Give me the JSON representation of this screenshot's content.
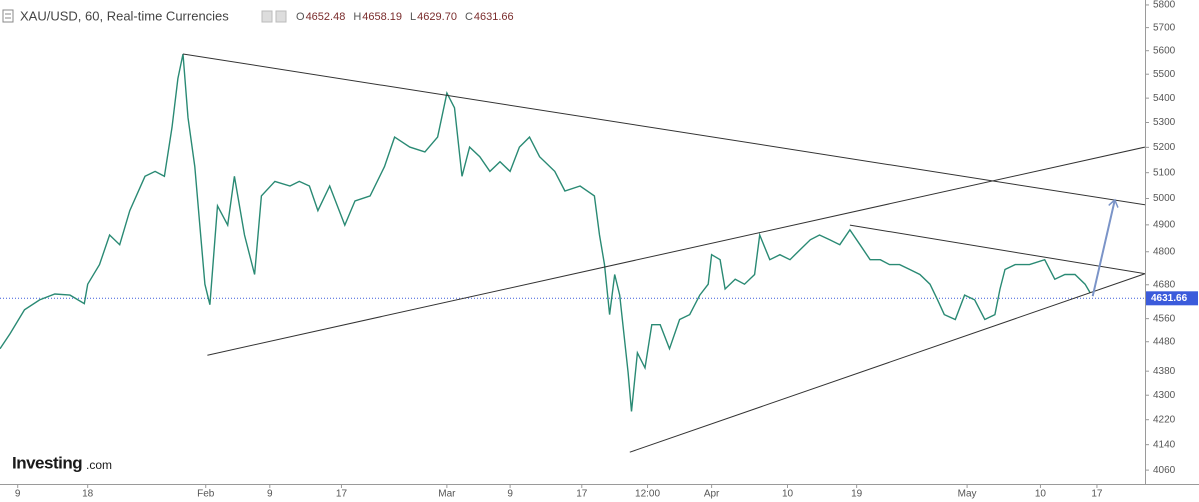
{
  "chart_data": {
    "type": "line",
    "symbol": "XAU/USD, 60, Real-time Currencies",
    "ohlc": [
      {
        "label": "O",
        "value": 4652.48
      },
      {
        "label": "H",
        "value": 4658.19
      },
      {
        "label": "L",
        "value": 4629.7
      },
      {
        "label": "C",
        "value": 4631.66
      }
    ],
    "last_price": 4631.66,
    "brand": {
      "name": "Investing",
      "suffix": ".com"
    },
    "log_scale": true,
    "xlim": [
      -2.1,
      133.7
    ],
    "ylim": [
      4017,
      5822
    ],
    "xticks": [
      {
        "value": 0,
        "label": "9"
      },
      {
        "value": 8.3,
        "label": "18"
      },
      {
        "value": 22.3,
        "label": "Feb"
      },
      {
        "value": 29.9,
        "label": "9"
      },
      {
        "value": 38.4,
        "label": "17"
      },
      {
        "value": 50.9,
        "label": "Mar"
      },
      {
        "value": 58.4,
        "label": "9"
      },
      {
        "value": 66.9,
        "label": "17"
      },
      {
        "value": 74.7,
        "label": "12:00"
      },
      {
        "value": 82.3,
        "label": "Apr"
      },
      {
        "value": 91.3,
        "label": "10"
      },
      {
        "value": 99.5,
        "label": "19"
      },
      {
        "value": 112.6,
        "label": "May"
      },
      {
        "value": 121.3,
        "label": "10"
      },
      {
        "value": 128.0,
        "label": "17"
      }
    ],
    "yticks": [
      5800,
      5700,
      5600,
      5500,
      5400,
      5300,
      5200,
      5100,
      5000,
      4900,
      4800,
      4680,
      4560,
      4480,
      4380,
      4300,
      4220,
      4140,
      4060
    ],
    "series": [
      {
        "name": "XAU/USD",
        "color": "#2a8a74",
        "x": [
          -2.1,
          -0.9,
          0.8,
          2.6,
          4.4,
          6.2,
          7.9,
          8.3,
          9.7,
          10.9,
          12.1,
          13.3,
          15.1,
          16.3,
          17.4,
          18.3,
          19.0,
          19.6,
          20.2,
          21.0,
          21.6,
          22.2,
          22.8,
          23.7,
          24.9,
          25.7,
          26.9,
          28.1,
          28.9,
          30.5,
          32.3,
          33.4,
          34.6,
          35.6,
          37.0,
          38.8,
          40.0,
          41.8,
          43.5,
          44.7,
          46.5,
          48.3,
          49.8,
          50.9,
          51.8,
          52.7,
          53.6,
          54.8,
          56.0,
          57.2,
          58.4,
          59.5,
          60.7,
          61.9,
          63.7,
          64.9,
          66.7,
          68.4,
          69.0,
          69.6,
          70.2,
          70.8,
          71.4,
          72.4,
          72.8,
          73.5,
          74.4,
          75.2,
          76.2,
          77.3,
          78.5,
          79.7,
          80.9,
          81.9,
          82.3,
          83.3,
          83.9,
          85.1,
          86.2,
          87.4,
          88.0,
          89.2,
          90.4,
          91.6,
          92.8,
          94.0,
          95.1,
          96.3,
          97.5,
          98.7,
          99.9,
          101.1,
          102.3,
          103.4,
          104.6,
          105.8,
          107.0,
          108.2,
          109.1,
          109.9,
          111.2,
          112.3,
          113.5,
          114.7,
          115.9,
          116.5,
          117.1,
          118.3,
          120.0,
          121.8,
          123.0,
          124.2,
          125.4,
          126.6,
          127.2
        ],
        "values": [
          4456,
          4508,
          4591,
          4626,
          4647,
          4643,
          4613,
          4682,
          4753,
          4862,
          4826,
          4954,
          5086,
          5105,
          5086,
          5280,
          5482,
          5586,
          5320,
          5124,
          4899,
          4682,
          4609,
          4972,
          4899,
          5086,
          4862,
          4717,
          5010,
          5066,
          5048,
          5066,
          5048,
          4954,
          5048,
          4899,
          4991,
          5010,
          5124,
          5241,
          5201,
          5182,
          5241,
          5421,
          5360,
          5086,
          5201,
          5163,
          5105,
          5143,
          5105,
          5201,
          5241,
          5163,
          5105,
          5029,
          5048,
          5010,
          4862,
          4753,
          4574,
          4717,
          4643,
          4376,
          4247,
          4442,
          4391,
          4539,
          4539,
          4456,
          4557,
          4574,
          4643,
          4682,
          4789,
          4771,
          4665,
          4700,
          4682,
          4717,
          4862,
          4771,
          4789,
          4771,
          4808,
          4844,
          4862,
          4844,
          4826,
          4881,
          4826,
          4771,
          4771,
          4753,
          4753,
          4735,
          4717,
          4682,
          4626,
          4574,
          4557,
          4643,
          4626,
          4557,
          4574,
          4665,
          4735,
          4753,
          4753,
          4771,
          4700,
          4717,
          4717,
          4682,
          4651
        ]
      }
    ],
    "trendlines": [
      {
        "color": "#333333",
        "x": [
          19.6,
          133.7
        ],
        "values": [
          5586,
          4976
        ]
      },
      {
        "color": "#333333",
        "x": [
          22.5,
          133.7
        ],
        "values": [
          4434,
          5201
        ]
      },
      {
        "color": "#333333",
        "x": [
          72.6,
          133.7
        ],
        "values": [
          4116,
          4720
        ]
      },
      {
        "color": "#333333",
        "x": [
          98.7,
          133.7
        ],
        "values": [
          4899,
          4720
        ]
      }
    ],
    "arrow": {
      "color": "#7b94c8",
      "x": [
        127.5,
        130.1
      ],
      "values": [
        4639,
        4991
      ]
    }
  }
}
